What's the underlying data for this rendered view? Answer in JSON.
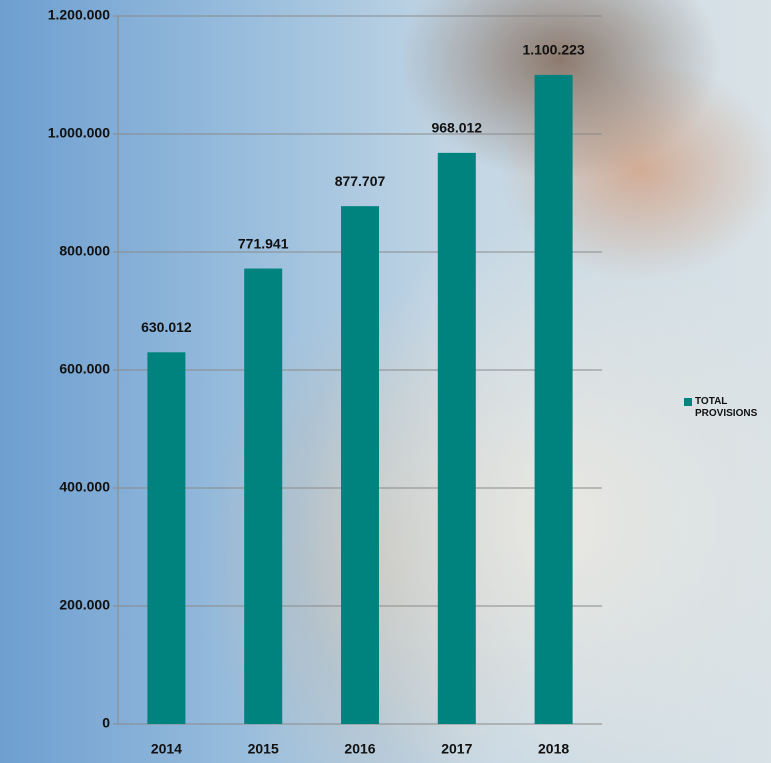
{
  "chart_data": {
    "type": "bar",
    "categories": [
      "2014",
      "2015",
      "2016",
      "2017",
      "2018"
    ],
    "series": [
      {
        "name": "TOTAL PROVISIONS",
        "color": "#00827f",
        "values": [
          630012,
          771941,
          877707,
          968012,
          1100223
        ],
        "value_labels": [
          "630.012",
          "771.941",
          "877.707",
          "968.012",
          "1.100.223"
        ]
      }
    ],
    "ylim": [
      0,
      1200000
    ],
    "yticks": [
      {
        "value": 0,
        "label": "0"
      },
      {
        "value": 200000,
        "label": "200.000"
      },
      {
        "value": 400000,
        "label": "400.000"
      },
      {
        "value": 600000,
        "label": "600.000"
      },
      {
        "value": 800000,
        "label": "800.000"
      },
      {
        "value": 1000000,
        "label": "1.000.000"
      },
      {
        "value": 1200000,
        "label": "1.200.000"
      }
    ],
    "grid": true,
    "legend": "right"
  }
}
